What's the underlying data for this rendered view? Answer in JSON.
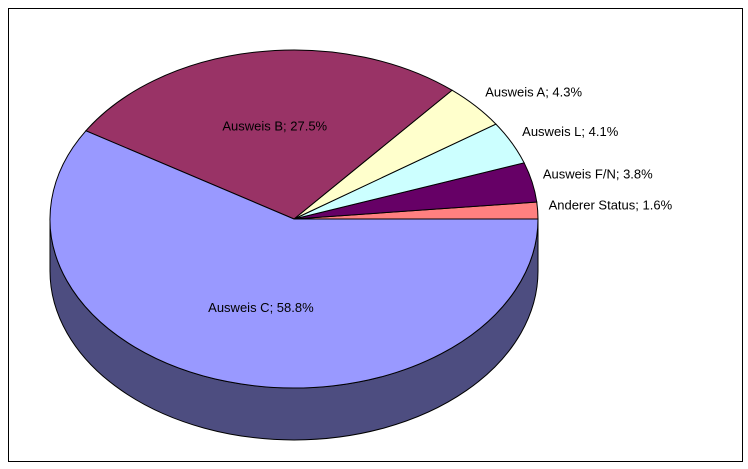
{
  "chart_data": {
    "type": "pie",
    "labels": [
      "Anderer Status; 1.6%",
      "Ausweis F/N; 3.8%",
      "Ausweis L; 4.1%",
      "Ausweis A; 4.3%",
      "Ausweis B; 27.5%",
      "Ausweis C; 58.8%"
    ],
    "values": [
      1.6,
      3.8,
      4.1,
      4.3,
      27.5,
      58.8
    ],
    "colors": [
      "#ff8080",
      "#660066",
      "#ccffff",
      "#ffffcc",
      "#993366",
      "#9999ff"
    ],
    "three_d": true
  }
}
